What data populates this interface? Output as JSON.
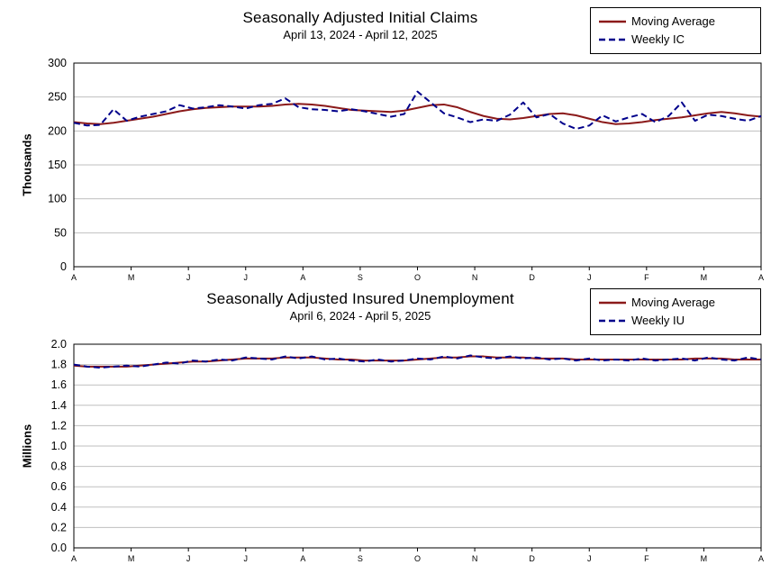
{
  "page": {
    "background": "#ffffff",
    "axis_color": "#000000",
    "grid_color": "#bfbfbf"
  },
  "chart_data": [
    {
      "type": "line",
      "title": "Seasonally Adjusted Initial Claims",
      "subtitle": "April 13, 2024 - April 12, 2025",
      "ylabel": "Thousands",
      "ylim": [
        0,
        300
      ],
      "yticks": [
        0,
        50,
        100,
        150,
        200,
        250,
        300
      ],
      "ydecimals": 0,
      "xticklabels": [
        "A",
        "M",
        "J",
        "J",
        "A",
        "S",
        "O",
        "N",
        "D",
        "J",
        "F",
        "M",
        "A"
      ],
      "grid": true,
      "legend_position": "top-right",
      "series": [
        {
          "name": "Moving Average",
          "color": "#8B1A1A",
          "style": "solid",
          "values": [
            213,
            211,
            210,
            212,
            215,
            218,
            221,
            225,
            229,
            232,
            234,
            235,
            236,
            236,
            236,
            237,
            239,
            240,
            239,
            237,
            234,
            231,
            230,
            229,
            228,
            230,
            234,
            238,
            239,
            235,
            228,
            222,
            218,
            217,
            219,
            222,
            225,
            226,
            223,
            218,
            213,
            210,
            211,
            213,
            216,
            218,
            220,
            223,
            226,
            228,
            226,
            223,
            221
          ]
        },
        {
          "name": "Weekly IC",
          "color": "#00008B",
          "style": "dashed",
          "values": [
            212,
            208,
            209,
            232,
            215,
            221,
            225,
            229,
            238,
            233,
            235,
            238,
            236,
            233,
            238,
            240,
            248,
            235,
            232,
            231,
            229,
            232,
            229,
            225,
            221,
            225,
            258,
            242,
            226,
            220,
            213,
            217,
            215,
            224,
            242,
            220,
            225,
            211,
            203,
            208,
            223,
            214,
            220,
            225,
            213,
            222,
            242,
            215,
            224,
            222,
            218,
            215,
            222
          ]
        }
      ]
    },
    {
      "type": "line",
      "title": "Seasonally Adjusted Insured Unemployment",
      "subtitle": "April 6, 2024 - April 5, 2025",
      "ylabel": "Millions",
      "ylim": [
        0,
        2.0
      ],
      "yticks": [
        0,
        0.2,
        0.4,
        0.6,
        0.8,
        1.0,
        1.2,
        1.4,
        1.6,
        1.8,
        2.0
      ],
      "ydecimals": 1,
      "xticklabels": [
        "A",
        "M",
        "J",
        "J",
        "A",
        "S",
        "O",
        "N",
        "D",
        "J",
        "F",
        "M",
        "A"
      ],
      "grid": true,
      "legend_position": "top-right",
      "series": [
        {
          "name": "Moving Average",
          "color": "#8B1A1A",
          "style": "solid",
          "values": [
            1.79,
            1.78,
            1.78,
            1.78,
            1.78,
            1.79,
            1.8,
            1.81,
            1.82,
            1.83,
            1.83,
            1.84,
            1.85,
            1.86,
            1.86,
            1.86,
            1.87,
            1.87,
            1.87,
            1.86,
            1.85,
            1.85,
            1.84,
            1.84,
            1.84,
            1.84,
            1.85,
            1.86,
            1.87,
            1.87,
            1.88,
            1.88,
            1.87,
            1.87,
            1.87,
            1.86,
            1.86,
            1.86,
            1.85,
            1.85,
            1.85,
            1.85,
            1.85,
            1.85,
            1.85,
            1.85,
            1.85,
            1.86,
            1.86,
            1.86,
            1.85,
            1.85,
            1.85
          ]
        },
        {
          "name": "Weekly IU",
          "color": "#00008B",
          "style": "dashed",
          "values": [
            1.8,
            1.78,
            1.77,
            1.78,
            1.79,
            1.78,
            1.8,
            1.82,
            1.81,
            1.84,
            1.83,
            1.85,
            1.84,
            1.87,
            1.86,
            1.85,
            1.88,
            1.86,
            1.88,
            1.85,
            1.86,
            1.84,
            1.83,
            1.85,
            1.83,
            1.84,
            1.86,
            1.85,
            1.88,
            1.86,
            1.89,
            1.87,
            1.86,
            1.88,
            1.86,
            1.87,
            1.85,
            1.86,
            1.84,
            1.86,
            1.84,
            1.85,
            1.84,
            1.86,
            1.84,
            1.85,
            1.86,
            1.84,
            1.87,
            1.85,
            1.84,
            1.87,
            1.85
          ]
        }
      ]
    }
  ]
}
